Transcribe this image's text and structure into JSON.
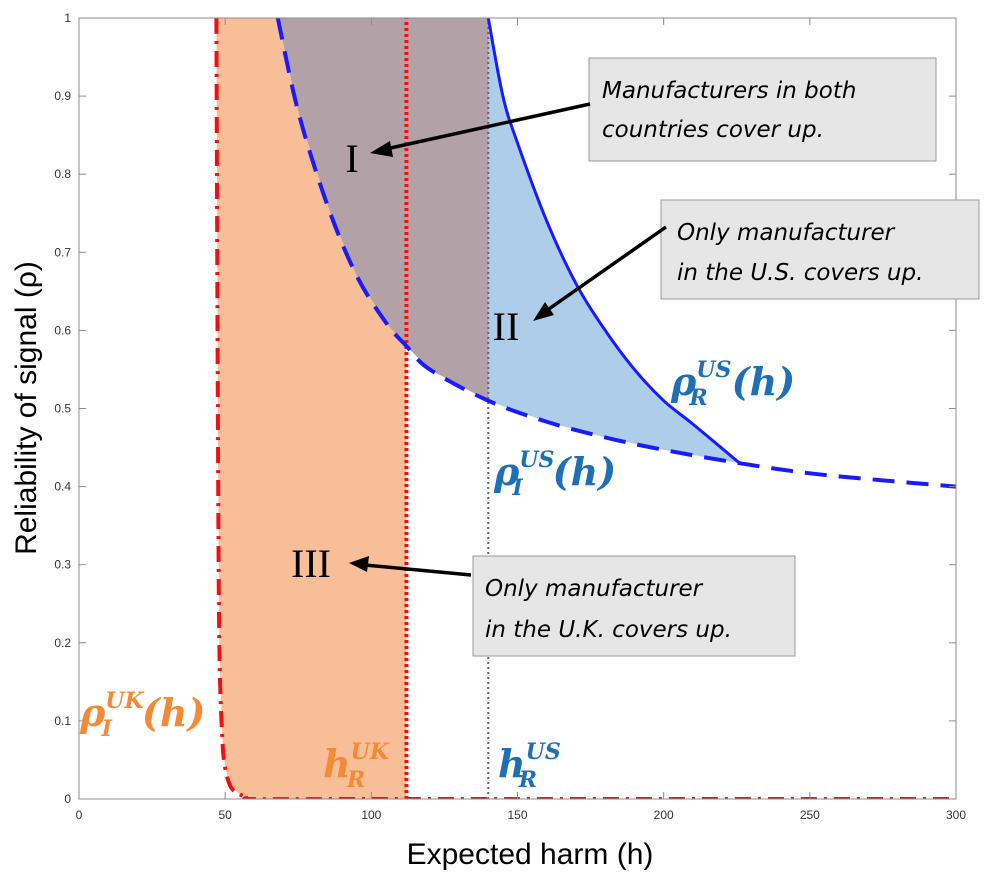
{
  "chart_data": {
    "type": "line",
    "xlabel": "Expected harm (h)",
    "ylabel": "Reliability of signal (ρ)",
    "xlim": [
      0,
      300
    ],
    "ylim": [
      0,
      1
    ],
    "xticks": [
      "0",
      "50",
      "100",
      "150",
      "200",
      "250",
      "300"
    ],
    "yticks": [
      "0",
      "0.1",
      "0.2",
      "0.3",
      "0.4",
      "0.5",
      "0.6",
      "0.7",
      "0.8",
      "0.9",
      "1"
    ],
    "grid": false,
    "series": [
      {
        "name": "ρ_I^US(h)",
        "style": "dashed",
        "color": "#1a1aff",
        "x": [
          68,
          75,
          85,
          95,
          105,
          112,
          120,
          140,
          160,
          180,
          200,
          226,
          250,
          275,
          300
        ],
        "y": [
          1.0,
          0.88,
          0.76,
          0.67,
          0.61,
          0.58,
          0.55,
          0.51,
          0.483,
          0.463,
          0.447,
          0.43,
          0.417,
          0.408,
          0.4
        ]
      },
      {
        "name": "ρ_R^US(h)",
        "style": "solid",
        "color": "#1a1aff",
        "x": [
          140,
          145,
          150,
          160,
          170,
          180,
          190,
          200,
          210,
          226
        ],
        "y": [
          1.0,
          0.9,
          0.84,
          0.74,
          0.66,
          0.6,
          0.55,
          0.51,
          0.48,
          0.43
        ]
      },
      {
        "name": "ρ_I^UK(h)",
        "style": "dash-dot",
        "color": "#ee1111",
        "x": [
          47,
          47.5,
          48,
          49,
          50,
          52,
          55,
          58,
          60,
          100,
          150,
          200,
          250,
          300
        ],
        "y": [
          1.0,
          0.5,
          0.2,
          0.08,
          0.04,
          0.015,
          0.006,
          0.002,
          0.0,
          0.0,
          0.0,
          0.0,
          0.0,
          0.0
        ]
      }
    ],
    "vlines": [
      {
        "name": "h_R^UK",
        "x": 112,
        "style": "dotted",
        "color": "#ee1111"
      },
      {
        "name": "h_R^US",
        "x": 140,
        "style": "dotted",
        "color": "#666666"
      }
    ],
    "regions": [
      {
        "label": "I",
        "color": "#b3a1a8",
        "x_from": 68,
        "x_to": 140,
        "description_ref": "notes.0"
      },
      {
        "label": "II",
        "color": "#aecde9",
        "x_from": 112,
        "x_to": 226,
        "description_ref": "notes.1"
      },
      {
        "label": "III",
        "color": "#f8be98",
        "x_from": 47,
        "x_to": 112,
        "description_ref": "notes.2"
      }
    ],
    "curve_labels": {
      "rho_r_us": {
        "base": "ρ",
        "sup": "US",
        "sub": "R",
        "tail": "(h)",
        "color": "#1f6fb5"
      },
      "rho_i_us": {
        "base": "ρ",
        "sup": "US",
        "sub": "I",
        "tail": "(h)",
        "color": "#1f6fb5"
      },
      "rho_i_uk": {
        "base": "ρ",
        "sup": "UK",
        "sub": "I",
        "tail": "(h)",
        "color": "#f58a36"
      },
      "h_r_uk": {
        "base": "h",
        "sup": "UK",
        "sub": "R",
        "tail": "",
        "color": "#f58a36"
      },
      "h_r_us": {
        "base": "h",
        "sup": "US",
        "sub": "R",
        "tail": "",
        "color": "#1f6fb5"
      }
    },
    "notes": [
      {
        "lines": [
          "Manufacturers in both",
          "countries cover up."
        ]
      },
      {
        "lines": [
          "Only manufacturer",
          "in the U.S. covers up."
        ]
      },
      {
        "lines": [
          "Only manufacturer",
          "in the U.K. covers up."
        ]
      }
    ]
  }
}
